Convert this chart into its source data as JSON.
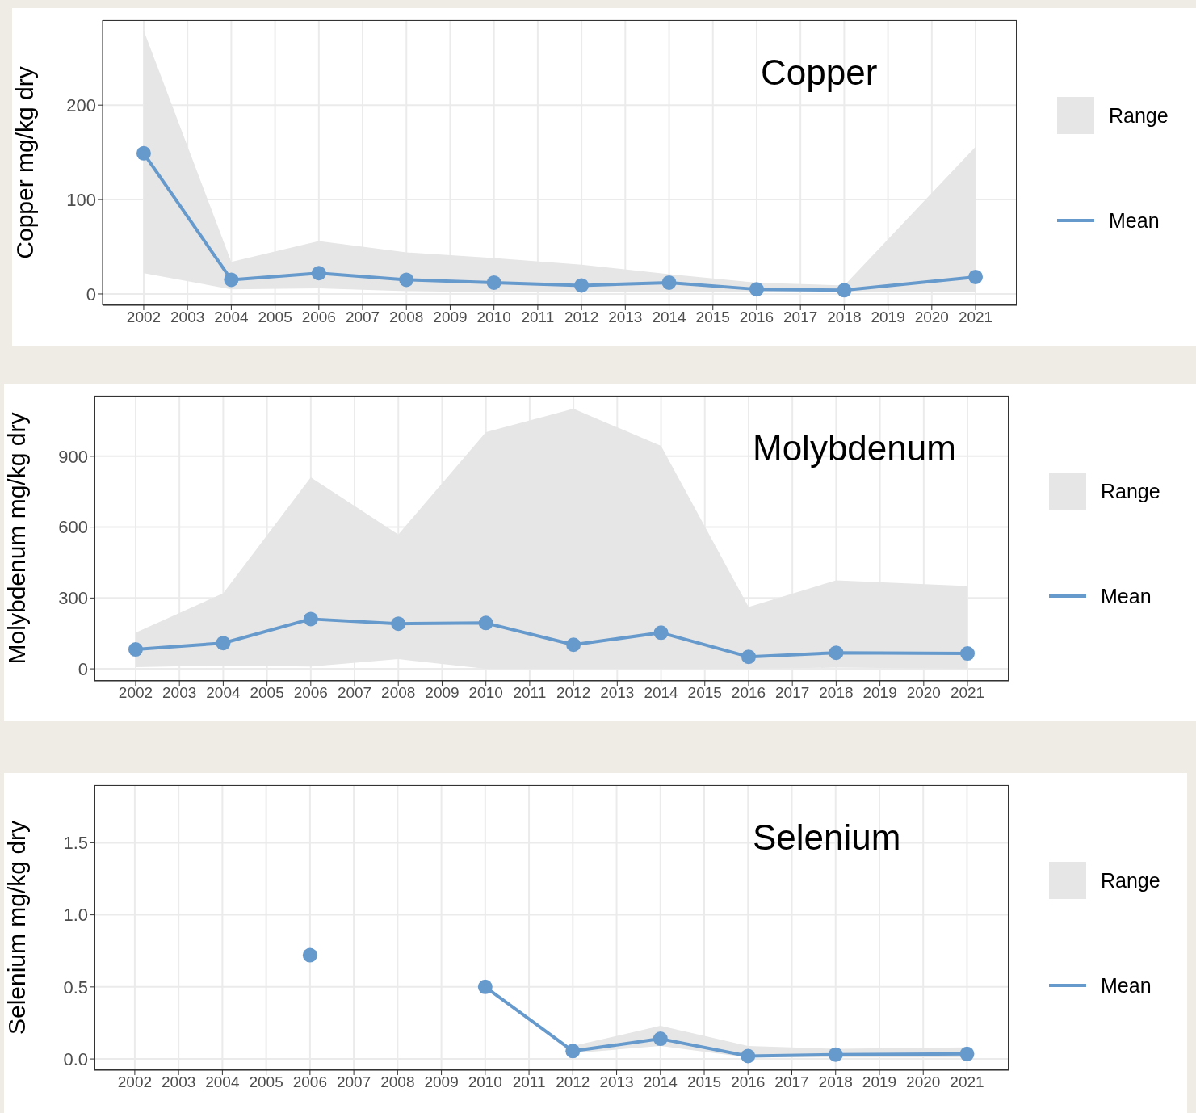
{
  "chart_data": [
    {
      "type": "line",
      "title": "Copper",
      "ylabel": "Copper  mg/kg dry",
      "annotations": [
        "Range"
      ],
      "x": [
        2002,
        2004,
        2006,
        2008,
        2010,
        2012,
        2014,
        2016,
        2018,
        2021
      ],
      "xlim": [
        2001.06,
        2021.94
      ],
      "xticks": [
        2002,
        2003,
        2004,
        2005,
        2006,
        2007,
        2008,
        2009,
        2010,
        2011,
        2012,
        2013,
        2014,
        2015,
        2016,
        2017,
        2018,
        2019,
        2020,
        2021
      ],
      "ylim": [
        -12,
        290
      ],
      "yticks": [
        0,
        100,
        200
      ],
      "grid": true,
      "legend": "right",
      "marker": "circle",
      "line_style": "solid",
      "series": [
        {
          "name": "Mean",
          "color": "#6699cc",
          "values": [
            149,
            15,
            22,
            15,
            12,
            9,
            12,
            5,
            4,
            18
          ],
          "lower": [
            22,
            5,
            6,
            3,
            2,
            2,
            2,
            2,
            2,
            2
          ],
          "upper": [
            279,
            34,
            56,
            44,
            38,
            31,
            21,
            12,
            9,
            156
          ]
        }
      ]
    },
    {
      "type": "line",
      "title": "Molybdenum",
      "ylabel": "Molybdenum  mg/kg dry",
      "annotations": [
        "Range"
      ],
      "x": [
        2002,
        2004,
        2006,
        2008,
        2010,
        2012,
        2014,
        2016,
        2018,
        2021
      ],
      "xlim": [
        2001.06,
        2021.94
      ],
      "xticks": [
        2002,
        2003,
        2004,
        2005,
        2006,
        2007,
        2008,
        2009,
        2010,
        2011,
        2012,
        2013,
        2014,
        2015,
        2016,
        2017,
        2018,
        2019,
        2020,
        2021
      ],
      "ylim": [
        -51,
        1156
      ],
      "yticks": [
        0,
        300,
        600,
        900
      ],
      "grid": true,
      "legend": "right",
      "marker": "circle",
      "line_style": "solid",
      "series": [
        {
          "name": "Mean",
          "color": "#6699cc",
          "values": [
            82,
            109,
            211,
            191,
            194,
            102,
            153,
            51,
            68,
            65
          ],
          "lower": [
            7,
            14,
            10,
            41,
            0,
            0,
            0,
            0,
            5,
            0
          ],
          "upper": [
            153,
            320,
            811,
            569,
            1002,
            1101,
            944,
            262,
            375,
            351
          ]
        }
      ]
    },
    {
      "type": "line",
      "title": "Selenium",
      "ylabel": "Selenium  mg/kg dry",
      "annotations": [
        "Range"
      ],
      "x": [
        2006,
        2008,
        2010,
        2012,
        2014,
        2016,
        2018,
        2021
      ],
      "xlim": [
        2001.08,
        2021.95
      ],
      "xticks": [
        2002,
        2003,
        2004,
        2005,
        2006,
        2007,
        2008,
        2009,
        2010,
        2011,
        2012,
        2013,
        2014,
        2015,
        2016,
        2017,
        2018,
        2019,
        2020,
        2021
      ],
      "ylim": [
        -0.078,
        1.9
      ],
      "yticks": [
        {
          "value": 0,
          "label": "0.0"
        },
        {
          "value": 0.5,
          "label": "0.5"
        },
        {
          "value": 1,
          "label": "1.0"
        },
        {
          "value": 1.5,
          "label": "1.5"
        }
      ],
      "grid": true,
      "legend": "right",
      "marker": "circle",
      "line_style": "solid",
      "series": [
        {
          "name": "Mean",
          "color": "#6699cc",
          "values": [
            0.72,
            null,
            0.5,
            0.055,
            0.14,
            0.02,
            0.03,
            0.035
          ],
          "lower": [
            null,
            null,
            null,
            0.04,
            0.09,
            0.01,
            0.01,
            0.01
          ],
          "upper": [
            null,
            null,
            null,
            0.09,
            0.23,
            0.09,
            0.07,
            0.08
          ]
        }
      ]
    }
  ]
}
